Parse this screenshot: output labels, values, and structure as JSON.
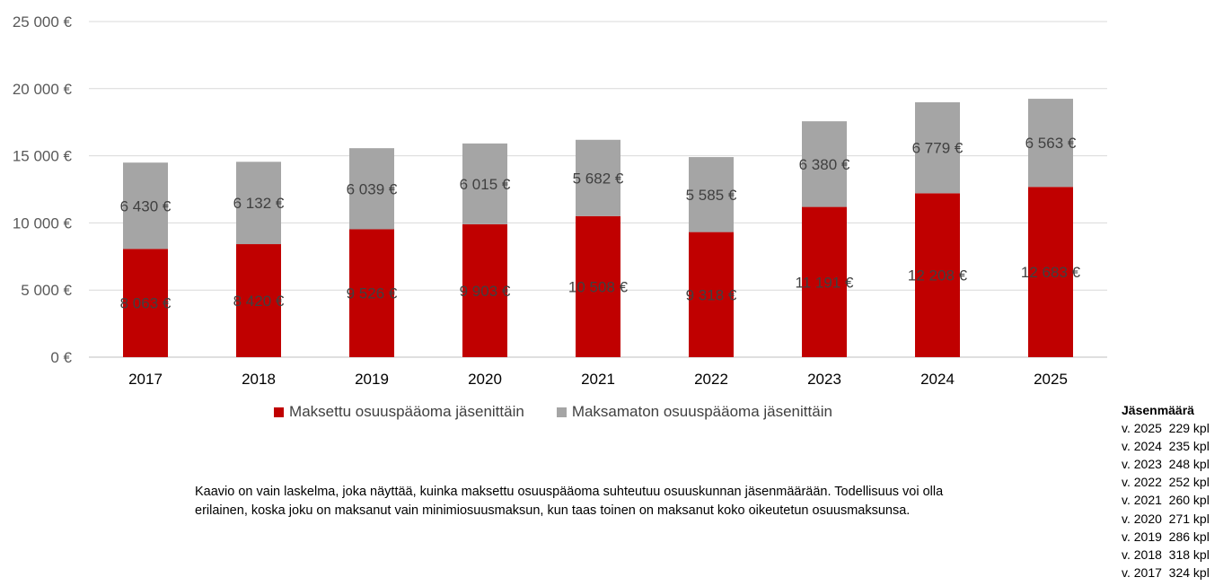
{
  "chart_data": {
    "type": "bar",
    "stacked": true,
    "categories": [
      "2017",
      "2018",
      "2019",
      "2020",
      "2021",
      "2022",
      "2023",
      "2024",
      "2025"
    ],
    "series": [
      {
        "name": "Maksettu osuuspääoma jäsenittäin",
        "color": "#c00000",
        "values": [
          8063,
          8420,
          9526,
          9903,
          10508,
          9318,
          11191,
          12208,
          12683
        ],
        "labels": [
          "8 063 €",
          "8 420 €",
          "9 526 €",
          "9 903 €",
          "10 508 €",
          "9 318 €",
          "11 191 €",
          "12 208 €",
          "12 683 €"
        ]
      },
      {
        "name": "Maksamaton osuuspääoma jäsenittäin",
        "color": "#a5a5a5",
        "values": [
          6430,
          6132,
          6039,
          6015,
          5682,
          5585,
          6380,
          6779,
          6563
        ],
        "labels": [
          "6 430 €",
          "6 132 €",
          "6 039 €",
          "6 015 €",
          "5 682 €",
          "5 585 €",
          "6 380 €",
          "6 779 €",
          "6 563 €"
        ]
      }
    ],
    "y_ticks": [
      0,
      5000,
      10000,
      15000,
      20000,
      25000
    ],
    "y_tick_labels": [
      "0 €",
      "5 000 €",
      "10 000 €",
      "15 000 €",
      "20 000 €",
      "25 000 €"
    ],
    "ylim": [
      0,
      25000
    ],
    "grid": true,
    "legend_position": "bottom"
  },
  "note": "Kaavio on vain laskelma, joka näyttää, kuinka maksettu osuuspääoma suhteutuu osuuskunnan jäsenmäärään. Todellisuus voi olla erilainen, koska joku on maksanut vain minimiosuusmaksun, kun taas toinen on maksanut koko oikeutetun osuusmaksunsa.",
  "members": {
    "title": "Jäsenmäärä",
    "rows": [
      "v. 2025  229 kpl",
      "v. 2024  235 kpl",
      "v. 2023  248 kpl",
      "v. 2022  252 kpl",
      "v. 2021  260 kpl",
      "v. 2020  271 kpl",
      "v. 2019  286 kpl",
      "v. 2018  318 kpl",
      "v. 2017  324 kpl"
    ]
  }
}
